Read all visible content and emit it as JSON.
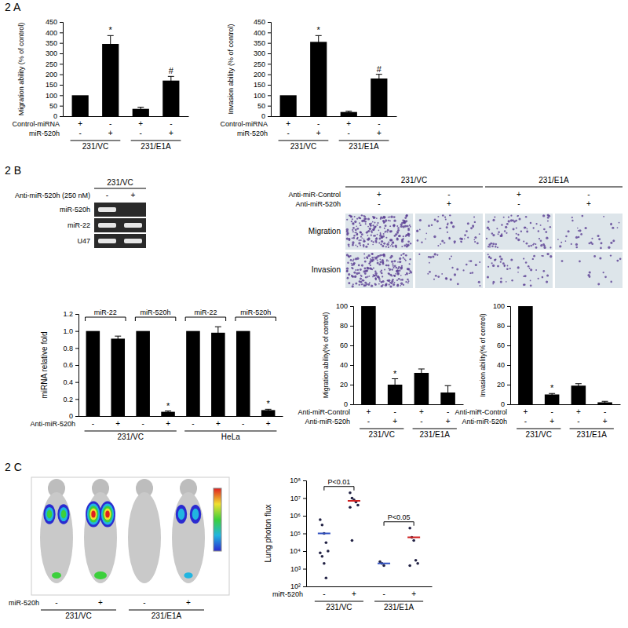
{
  "panels": [
    "2 A",
    "2 B",
    "2 C"
  ],
  "chart_data": [
    {
      "type": "bar",
      "y_label": "Migration ability (% of control)",
      "categories": [
        null,
        null,
        null,
        null
      ],
      "values": [
        100,
        345,
        35,
        170
      ],
      "errors": [
        null,
        40,
        8,
        20
      ],
      "annotations": [
        null,
        "*",
        null,
        "#"
      ],
      "conditions": [
        {
          "name": "Control-miRNA",
          "signs": [
            "+",
            "-",
            "+",
            "-"
          ]
        },
        {
          "name": "miR-520h",
          "signs": [
            "-",
            "+",
            "-",
            "+"
          ]
        }
      ],
      "groups": [
        "231/VC",
        "231/VC",
        "231/E1A",
        "231/E1A"
      ],
      "color": "#000000",
      "ylim": [
        0,
        450
      ],
      "yticks": [
        0,
        50,
        100,
        150,
        200,
        250,
        300,
        350,
        400,
        450
      ]
    },
    {
      "type": "bar",
      "y_label": "Invasion ability (% of control)",
      "categories": [
        null,
        null,
        null,
        null
      ],
      "values": [
        100,
        355,
        20,
        180
      ],
      "errors": [
        null,
        30,
        4,
        20
      ],
      "annotations": [
        null,
        "*",
        null,
        "#"
      ],
      "conditions": [
        {
          "name": "Control-miRNA",
          "signs": [
            "+",
            "-",
            "+",
            "-"
          ]
        },
        {
          "name": "miR-520h",
          "signs": [
            "-",
            "+",
            "-",
            "+"
          ]
        }
      ],
      "groups": [
        "231/VC",
        "231/VC",
        "231/E1A",
        "231/E1A"
      ],
      "color": "#000000",
      "ylim": [
        0,
        450
      ],
      "yticks": [
        0,
        50,
        100,
        150,
        200,
        250,
        300,
        350,
        400,
        450
      ]
    },
    {
      "type": "bar",
      "y_label": "miRNA relative fold",
      "categories": [
        null,
        null,
        null,
        null,
        null,
        null,
        null,
        null
      ],
      "values": [
        1,
        0.91,
        1,
        0.05,
        1,
        0.98,
        1,
        0.07
      ],
      "errors": [
        null,
        0.03,
        null,
        0.01,
        null,
        0.07,
        null,
        0.01
      ],
      "annotations": [
        null,
        null,
        null,
        "*",
        null,
        null,
        null,
        "*"
      ],
      "subgroups": [
        "miR-22",
        "miR-22",
        "miR-520h",
        "miR-520h",
        "miR-22",
        "miR-22",
        "miR-520h",
        "miR-520h"
      ],
      "conditions": [
        {
          "name": "Anti-miR-520h",
          "signs": [
            "-",
            "+",
            "-",
            "+",
            "-",
            "+",
            "-",
            "+"
          ]
        }
      ],
      "groups": [
        "231/VC",
        "231/VC",
        "231/VC",
        "231/VC",
        "HeLa",
        "HeLa",
        "HeLa",
        "HeLa"
      ],
      "color": "#000000",
      "ylim": [
        0,
        1.2
      ],
      "yticks": [
        0,
        0.2,
        0.4,
        0.6,
        0.8,
        {
          "value": 1,
          "label": "1.0"
        },
        1.2
      ]
    },
    {
      "type": "bar",
      "y_label": "Migration ability(% of control)",
      "categories": [
        null,
        null,
        null,
        null
      ],
      "values": [
        100,
        20,
        32,
        12
      ],
      "errors": [
        null,
        6,
        4,
        7
      ],
      "annotations": [
        null,
        "*",
        null,
        null
      ],
      "conditions": [
        {
          "name": "Anti-miR-Control",
          "signs": [
            "+",
            "-",
            "+",
            "-"
          ]
        },
        {
          "name": "Anti-miR-520h",
          "signs": [
            "-",
            "+",
            "-",
            "+"
          ]
        }
      ],
      "groups": [
        "231/VC",
        "231/VC",
        "231/E1A",
        "231/E1A"
      ],
      "color": "#000000",
      "ylim": [
        0,
        100
      ],
      "yticks": [
        0,
        20,
        40,
        60,
        80,
        100
      ]
    },
    {
      "type": "bar",
      "y_label": "Invasion ability(% of control)",
      "categories": [
        null,
        null,
        null,
        null
      ],
      "values": [
        100,
        10,
        19,
        2
      ],
      "errors": [
        null,
        1,
        2,
        1
      ],
      "annotations": [
        null,
        "*",
        null,
        null
      ],
      "conditions": [
        {
          "name": "Anti-miR-Control",
          "signs": [
            "+",
            "-",
            "+",
            "-"
          ]
        },
        {
          "name": "Anti-miR-520h",
          "signs": [
            "-",
            "+",
            "-",
            "+"
          ]
        }
      ],
      "groups": [
        "231/VC",
        "231/VC",
        "231/E1A",
        "231/E1A"
      ],
      "color": "#000000",
      "ylim": [
        0,
        100
      ],
      "yticks": [
        0,
        20,
        40,
        60,
        80,
        100
      ]
    },
    {
      "type": "scatter",
      "y_label": "Lung photon flux",
      "log": "y",
      "categories": [
        null,
        null,
        null,
        null
      ],
      "values": [
        [
          600000,
          300000,
          100000,
          30000,
          10000,
          8000,
          5000,
          2000,
          300
        ],
        [
          20000000,
          10000000,
          8000000,
          6000000,
          4000000,
          3000000,
          40000
        ],
        [
          2500,
          2000,
          1500
        ],
        [
          200000,
          60000,
          40000,
          3000,
          2000,
          1500
        ]
      ],
      "means": [
        100000,
        7000000,
        2000,
        60000
      ],
      "colors": [
        "#3050c0",
        "#d02020",
        "#3050c0",
        "#d02020"
      ],
      "brackets": [
        {
          "label": "P<0.01",
          "from": 0,
          "to": 1
        },
        {
          "label": "P<0.05",
          "from": 2,
          "to": 3
        }
      ],
      "conditions": [
        {
          "name": "miR-520h",
          "signs": [
            "-",
            "+",
            "-",
            "+"
          ]
        }
      ],
      "groups": [
        "231/VC",
        "231/VC",
        "231/E1A",
        "231/E1A"
      ],
      "ylim": [
        100,
        100000000
      ],
      "yticks": [
        {
          "value": 100,
          "label": "10²"
        },
        {
          "value": 1000,
          "label": "10³"
        },
        {
          "value": 10000,
          "label": "10⁴"
        },
        {
          "value": 100000,
          "label": "10⁵"
        },
        {
          "value": 1000000,
          "label": "10⁶"
        },
        {
          "value": 10000000,
          "label": "10⁷"
        },
        {
          "value": 100000000,
          "label": "10⁸"
        }
      ]
    }
  ],
  "gel": {
    "header": "231/VC",
    "treatment": "Anti-miR-520h (250 nM)",
    "signs": [
      "-",
      "+"
    ],
    "rows": [
      "miR-520h",
      "miR-22",
      "U47"
    ],
    "present": [
      [
        true,
        false
      ],
      [
        true,
        true
      ],
      [
        true,
        true
      ]
    ]
  },
  "micrographs": {
    "groups": [
      "231/VC",
      "231/VC",
      "231/E1A",
      "231/E1A"
    ],
    "conditions": [
      {
        "name": "Anti-miR-Control",
        "signs": [
          "+",
          "-",
          "+",
          "-"
        ]
      },
      {
        "name": "Anti-miR-520h",
        "signs": [
          "-",
          "+",
          "-",
          "+"
        ]
      }
    ],
    "rows": [
      "Migration",
      "Invasion"
    ]
  },
  "imaging": {
    "conditions": [
      {
        "name": "miR-520h",
        "signs": [
          "-",
          "+",
          "-",
          "+"
        ]
      }
    ],
    "groups": [
      "231/VC",
      "231/VC",
      "231/E1A",
      "231/E1A"
    ]
  }
}
